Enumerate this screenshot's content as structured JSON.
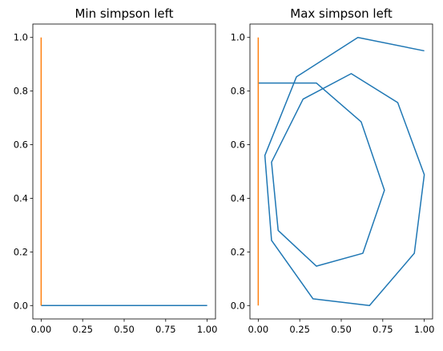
{
  "colors": {
    "series_blue": "#1f77b4",
    "series_orange": "#ff7f0e",
    "axes": "#000000",
    "background": "#ffffff"
  },
  "chart_data": [
    {
      "type": "line",
      "title": "Min simpson left",
      "xlabel": "",
      "ylabel": "",
      "xlim": [
        -0.05,
        1.05
      ],
      "ylim": [
        -0.05,
        1.05
      ],
      "xticks": [
        "0.00",
        "0.25",
        "0.50",
        "0.75",
        "1.00"
      ],
      "yticks": [
        "0.0",
        "0.2",
        "0.4",
        "0.6",
        "0.8",
        "1.0"
      ],
      "grid": false,
      "series": [
        {
          "color": "#1f77b4",
          "x": [
            0,
            1
          ],
          "y": [
            0,
            0
          ]
        },
        {
          "color": "#ff7f0e",
          "x": [
            0,
            0
          ],
          "y": [
            0,
            1
          ]
        }
      ]
    },
    {
      "type": "line",
      "title": "Max simpson left",
      "xlabel": "",
      "ylabel": "",
      "xlim": [
        -0.05,
        1.05
      ],
      "ylim": [
        -0.05,
        1.05
      ],
      "xticks": [
        "0.00",
        "0.25",
        "0.50",
        "0.75",
        "1.00"
      ],
      "yticks": [
        "0.0",
        "0.2",
        "0.4",
        "0.6",
        "0.8",
        "1.0"
      ],
      "grid": false,
      "series": [
        {
          "color": "#1f77b4",
          "x": [
            0.0,
            0.35,
            0.62,
            0.76,
            0.63,
            0.35,
            0.12,
            0.08,
            0.27,
            0.56,
            0.84,
            1.0,
            0.94,
            0.67,
            0.33,
            0.08,
            0.04,
            0.23,
            0.6,
            1.0
          ],
          "y": [
            0.83,
            0.83,
            0.685,
            0.43,
            0.195,
            0.147,
            0.28,
            0.535,
            0.77,
            0.865,
            0.757,
            0.488,
            0.195,
            0.0,
            0.025,
            0.243,
            0.56,
            0.853,
            1.0,
            0.95
          ]
        },
        {
          "color": "#ff7f0e",
          "x": [
            0,
            0
          ],
          "y": [
            0,
            1
          ]
        }
      ]
    }
  ]
}
